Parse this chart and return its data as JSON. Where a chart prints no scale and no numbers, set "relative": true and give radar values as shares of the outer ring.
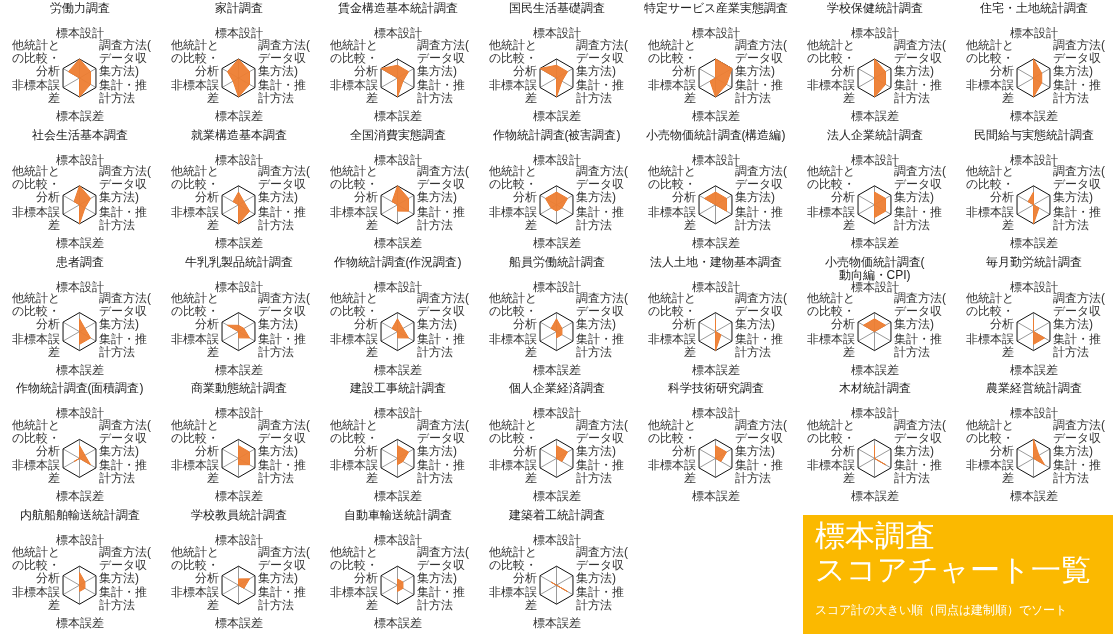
{
  "chart_data": [
    {
      "type": "radar",
      "title": "労働力調査",
      "relative": true,
      "categories": [
        "標本設計",
        "調査方法(データ収集方法)",
        "集計・推計方法",
        "標本誤差",
        "非標本誤差",
        "他統計との比較・分析"
      ],
      "series": [
        {
          "color": "#ed7d31",
          "values": [
            1,
            0.67,
            0.67,
            1,
            0,
            0.67
          ]
        }
      ]
    },
    {
      "type": "radar",
      "title": "家計調査",
      "relative": true,
      "categories": [
        "標本設計",
        "調査方法(データ収集方法)",
        "集計・推計方法",
        "標本誤差",
        "非標本誤差",
        "他統計との比較・分析"
      ],
      "series": [
        {
          "color": "#ed7d31",
          "values": [
            1,
            0.67,
            0.67,
            1,
            0.33,
            0.67
          ]
        }
      ]
    },
    {
      "type": "radar",
      "title": "賃金構造基本統計調査",
      "relative": true,
      "categories": [
        "標本設計",
        "調査方法(データ収集方法)",
        "集計・推計方法",
        "標本誤差",
        "非標本誤差",
        "他統計との比較・分析"
      ],
      "series": [
        {
          "color": "#ed7d31",
          "values": [
            0.67,
            0.67,
            0.33,
            1,
            0,
            1
          ]
        }
      ]
    },
    {
      "type": "radar",
      "title": "国民生活基礎調査",
      "relative": true,
      "categories": [
        "標本設計",
        "調査方法(データ収集方法)",
        "集計・推計方法",
        "標本誤差",
        "非標本誤差",
        "他統計との比較・分析"
      ],
      "series": [
        {
          "color": "#ed7d31",
          "values": [
            0.67,
            0.67,
            0.33,
            1,
            0,
            1
          ]
        }
      ]
    },
    {
      "type": "radar",
      "title": "特定サービス産業実態調査",
      "relative": true,
      "categories": [
        "標本設計",
        "調査方法(データ収集方法)",
        "集計・推計方法",
        "標本誤差",
        "非標本誤差",
        "他統計との比較・分析"
      ],
      "series": [
        {
          "color": "#ed7d31",
          "values": [
            1,
            1,
            0.67,
            1,
            0.33,
            0
          ]
        }
      ]
    },
    {
      "type": "radar",
      "title": "学校保健統計調査",
      "relative": true,
      "categories": [
        "標本設計",
        "調査方法(データ収集方法)",
        "集計・推計方法",
        "標本誤差",
        "非標本誤差",
        "他統計との比較・分析"
      ],
      "series": [
        {
          "color": "#ed7d31",
          "values": [
            1,
            0.67,
            0.67,
            1,
            0,
            0
          ]
        }
      ]
    },
    {
      "type": "radar",
      "title": "住宅・土地統計調査",
      "relative": true,
      "categories": [
        "標本設計",
        "調査方法(データ収集方法)",
        "集計・推計方法",
        "標本誤差",
        "非標本誤差",
        "他統計との比較・分析"
      ],
      "series": [
        {
          "color": "#ed7d31",
          "values": [
            1,
            0.5,
            0.5,
            1,
            0,
            0
          ]
        }
      ]
    },
    {
      "type": "radar",
      "title": "社会生活基本調査",
      "relative": true,
      "categories": [
        "標本設計",
        "調査方法(データ収集方法)",
        "集計・推計方法",
        "標本誤差",
        "非標本誤差",
        "他統計との比較・分析"
      ],
      "series": [
        {
          "color": "#ed7d31",
          "values": [
            1,
            0.67,
            0.33,
            1,
            0,
            0.33
          ]
        }
      ]
    },
    {
      "type": "radar",
      "title": "就業構造基本調査",
      "relative": true,
      "categories": [
        "標本設計",
        "調査方法(データ収集方法)",
        "集計・推計方法",
        "標本誤差",
        "非標本誤差",
        "他統計との比較・分析"
      ],
      "series": [
        {
          "color": "#ed7d31",
          "values": [
            0.67,
            0.33,
            0.67,
            1,
            0,
            0.33
          ]
        }
      ]
    },
    {
      "type": "radar",
      "title": "全国消費実態調査",
      "relative": true,
      "categories": [
        "標本設計",
        "調査方法(データ収集方法)",
        "集計・推計方法",
        "標本誤差",
        "非標本誤差",
        "他統計との比較・分析"
      ],
      "series": [
        {
          "color": "#ed7d31",
          "values": [
            1,
            0.67,
            0.67,
            0.33,
            0,
            0.33
          ]
        }
      ]
    },
    {
      "type": "radar",
      "title": "作物統計調査(被害調査)",
      "relative": true,
      "categories": [
        "標本設計",
        "調査方法(データ収集方法)",
        "集計・推計方法",
        "標本誤差",
        "非標本誤差",
        "他統計との比較・分析"
      ],
      "series": [
        {
          "color": "#ed7d31",
          "values": [
            0.67,
            0.67,
            0.33,
            0.33,
            0.33,
            0.67
          ]
        }
      ]
    },
    {
      "type": "radar",
      "title": "小売物価統計調査(構造編)",
      "relative": true,
      "categories": [
        "標本設計",
        "調査方法(データ収集方法)",
        "集計・推計方法",
        "標本誤差",
        "非標本誤差",
        "他統計との比較・分析"
      ],
      "series": [
        {
          "color": "#ed7d31",
          "values": [
            0.67,
            0.67,
            0.67,
            0,
            0,
            0.67
          ]
        }
      ]
    },
    {
      "type": "radar",
      "title": "法人企業統計調査",
      "relative": true,
      "categories": [
        "標本設計",
        "調査方法(データ収集方法)",
        "集計・推計方法",
        "標本誤差",
        "非標本誤差",
        "他統計との比較・分析"
      ],
      "series": [
        {
          "color": "#ed7d31",
          "values": [
            0.67,
            0.67,
            0.67,
            0.67,
            0,
            0
          ]
        }
      ]
    },
    {
      "type": "radar",
      "title": "民間給与実態統計調査",
      "relative": true,
      "categories": [
        "標本設計",
        "調査方法(データ収集方法)",
        "集計・推計方法",
        "標本誤差",
        "非標本誤差",
        "他統計との比較・分析"
      ],
      "series": [
        {
          "color": "#ed7d31",
          "values": [
            0.67,
            0,
            0.33,
            1,
            0,
            0.33
          ]
        }
      ]
    },
    {
      "type": "radar",
      "title": "患者調査",
      "relative": true,
      "categories": [
        "標本設計",
        "調査方法(データ収集方法)",
        "集計・推計方法",
        "標本誤差",
        "非標本誤差",
        "他統計との比較・分析"
      ],
      "series": [
        {
          "color": "#ed7d31",
          "values": [
            0.67,
            0.33,
            0.67,
            0.67,
            0,
            0
          ]
        }
      ]
    },
    {
      "type": "radar",
      "title": "牛乳乳製品統計調査",
      "relative": true,
      "categories": [
        "標本設計",
        "調査方法(データ収集方法)",
        "集計・推計方法",
        "標本誤差",
        "非標本誤差",
        "他統計との比較・分析"
      ],
      "series": [
        {
          "color": "#ed7d31",
          "values": [
            0.33,
            0.33,
            0.67,
            0.33,
            0,
            0.67
          ]
        }
      ]
    },
    {
      "type": "radar",
      "title": "作物統計調査(作況調査)",
      "relative": true,
      "categories": [
        "標本設計",
        "調査方法(データ収集方法)",
        "集計・推計方法",
        "標本誤差",
        "非標本誤差",
        "他統計との比較・分析"
      ],
      "series": [
        {
          "color": "#ed7d31",
          "values": [
            0.67,
            0.33,
            0.67,
            0.33,
            0,
            0.33
          ]
        }
      ]
    },
    {
      "type": "radar",
      "title": "船員労働統計調査",
      "relative": true,
      "categories": [
        "標本設計",
        "調査方法(データ収集方法)",
        "集計・推計方法",
        "標本誤差",
        "非標本誤差",
        "他統計との比較・分析"
      ],
      "series": [
        {
          "color": "#ed7d31",
          "values": [
            0.67,
            0.33,
            0.33,
            0.33,
            0,
            0.33
          ]
        }
      ]
    },
    {
      "type": "radar",
      "title": "法人土地・建物基本調査",
      "relative": true,
      "categories": [
        "標本設計",
        "調査方法(データ収集方法)",
        "集計・推計方法",
        "標本誤差",
        "非標本誤差",
        "他統計との比較・分析"
      ],
      "series": [
        {
          "color": "#ed7d31",
          "values": [
            0.67,
            0,
            0.33,
            1,
            0,
            0
          ]
        }
      ]
    },
    {
      "type": "radar",
      "title": "小売物価統計調査(動向編・CPI)",
      "relative": true,
      "categories": [
        "標本設計",
        "調査方法(データ収集方法)",
        "集計・推計方法",
        "標本誤差",
        "非標本誤差",
        "他統計との比較・分析"
      ],
      "series": [
        {
          "color": "#ed7d31",
          "values": [
            0.67,
            0.67,
            0,
            0,
            0,
            0.67
          ]
        }
      ]
    },
    {
      "type": "radar",
      "title": "毎月勤労統計調査",
      "relative": true,
      "categories": [
        "標本設計",
        "調査方法(データ収集方法)",
        "集計・推計方法",
        "標本誤差",
        "非標本誤差",
        "他統計との比較・分析"
      ],
      "series": [
        {
          "color": "#ed7d31",
          "values": [
            0.67,
            0,
            0.67,
            0.67,
            0,
            0
          ]
        }
      ]
    },
    {
      "type": "radar",
      "title": "作物統計調査(面積調査)",
      "relative": true,
      "categories": [
        "標本設計",
        "調査方法(データ収集方法)",
        "集計・推計方法",
        "標本誤差",
        "非標本誤差",
        "他統計との比較・分析"
      ],
      "series": [
        {
          "color": "#ed7d31",
          "values": [
            0.67,
            0.33,
            0.67,
            0,
            0.33,
            0
          ]
        }
      ]
    },
    {
      "type": "radar",
      "title": "商業動態統計調査",
      "relative": true,
      "categories": [
        "標本設計",
        "調査方法(データ収集方法)",
        "集計・推計方法",
        "標本誤差",
        "非標本誤差",
        "他統計との比較・分析"
      ],
      "series": [
        {
          "color": "#ed7d31",
          "values": [
            0.67,
            0.67,
            0.67,
            0.33,
            0,
            0
          ]
        }
      ]
    },
    {
      "type": "radar",
      "title": "建設工事統計調査",
      "relative": true,
      "categories": [
        "標本設計",
        "調査方法(データ収集方法)",
        "集計・推計方法",
        "標本誤差",
        "非標本誤差",
        "他統計との比較・分析"
      ],
      "series": [
        {
          "color": "#ed7d31",
          "values": [
            0.67,
            0.67,
            0.33,
            0.33,
            0,
            0
          ]
        }
      ]
    },
    {
      "type": "radar",
      "title": "個人企業経済調査",
      "relative": true,
      "categories": [
        "標本設計",
        "調査方法(データ収集方法)",
        "集計・推計方法",
        "標本誤差",
        "非標本誤差",
        "他統計との比較・分析"
      ],
      "series": [
        {
          "color": "#ed7d31",
          "values": [
            0.67,
            0.67,
            0.33,
            0,
            0,
            0
          ]
        }
      ]
    },
    {
      "type": "radar",
      "title": "科学技術研究調査",
      "relative": true,
      "categories": [
        "標本設計",
        "調査方法(データ収集方法)",
        "集計・推計方法",
        "標本誤差",
        "非標本誤差",
        "他統計との比較・分析"
      ],
      "series": [
        {
          "color": "#ed7d31",
          "values": [
            0.67,
            0.67,
            0.33,
            0,
            0,
            0
          ]
        }
      ]
    },
    {
      "type": "radar",
      "title": "木材統計調査",
      "relative": true,
      "categories": [
        "標本設計",
        "調査方法(データ収集方法)",
        "集計・推計方法",
        "標本誤差",
        "非標本誤差",
        "他統計との比較・分析"
      ],
      "series": [
        {
          "color": "#ed7d31",
          "values": [
            0.67,
            0,
            0.67,
            0,
            0,
            0
          ]
        }
      ]
    },
    {
      "type": "radar",
      "title": "農業経営統計調査",
      "relative": true,
      "categories": [
        "標本設計",
        "調査方法(データ収集方法)",
        "集計・推計方法",
        "標本誤差",
        "非標本誤差",
        "他統計との比較・分析"
      ],
      "series": [
        {
          "color": "#ed7d31",
          "values": [
            1,
            0.33,
            0.67,
            0,
            0,
            0
          ]
        }
      ]
    },
    {
      "type": "radar",
      "title": "内航船舶輸送統計調査",
      "relative": true,
      "categories": [
        "標本設計",
        "調査方法(データ収集方法)",
        "集計・推計方法",
        "標本誤差",
        "非標本誤差",
        "他統計との比較・分析"
      ],
      "series": [
        {
          "color": "#ed7d31",
          "values": [
            0.67,
            0.33,
            0.33,
            0.33,
            0,
            0
          ]
        }
      ]
    },
    {
      "type": "radar",
      "title": "学校教員統計調査",
      "relative": true,
      "categories": [
        "標本設計",
        "調査方法(データ収集方法)",
        "集計・推計方法",
        "標本誤差",
        "非標本誤差",
        "他統計との比較・分析"
      ],
      "series": [
        {
          "color": "#ed7d31",
          "values": [
            0.33,
            0.67,
            0.33,
            0,
            0,
            0
          ]
        }
      ]
    },
    {
      "type": "radar",
      "title": "自動車輸送統計調査",
      "relative": true,
      "categories": [
        "標本設計",
        "調査方法(データ収集方法)",
        "集計・推計方法",
        "標本誤差",
        "非標本誤差",
        "他統計との比較・分析"
      ],
      "series": [
        {
          "color": "#ed7d31",
          "values": [
            0.33,
            0.33,
            0.33,
            0.33,
            0,
            0
          ]
        }
      ]
    },
    {
      "type": "radar",
      "title": "建築着工統計調査",
      "relative": true,
      "categories": [
        "標本設計",
        "調査方法(データ収集方法)",
        "集計・推計方法",
        "標本誤差",
        "非標本誤差",
        "他統計との比較・分析"
      ],
      "series": [
        {
          "color": "#ed7d31",
          "values": [
            0,
            0,
            0.67,
            0,
            0,
            0.33
          ]
        }
      ]
    },
    {
      "type": "other",
      "title": "標本調査",
      "subtitle": "スコアチャート一覧",
      "annotations": [
        "スコア計の大きい順（同点は建制順）でソート"
      ]
    }
  ]
}
